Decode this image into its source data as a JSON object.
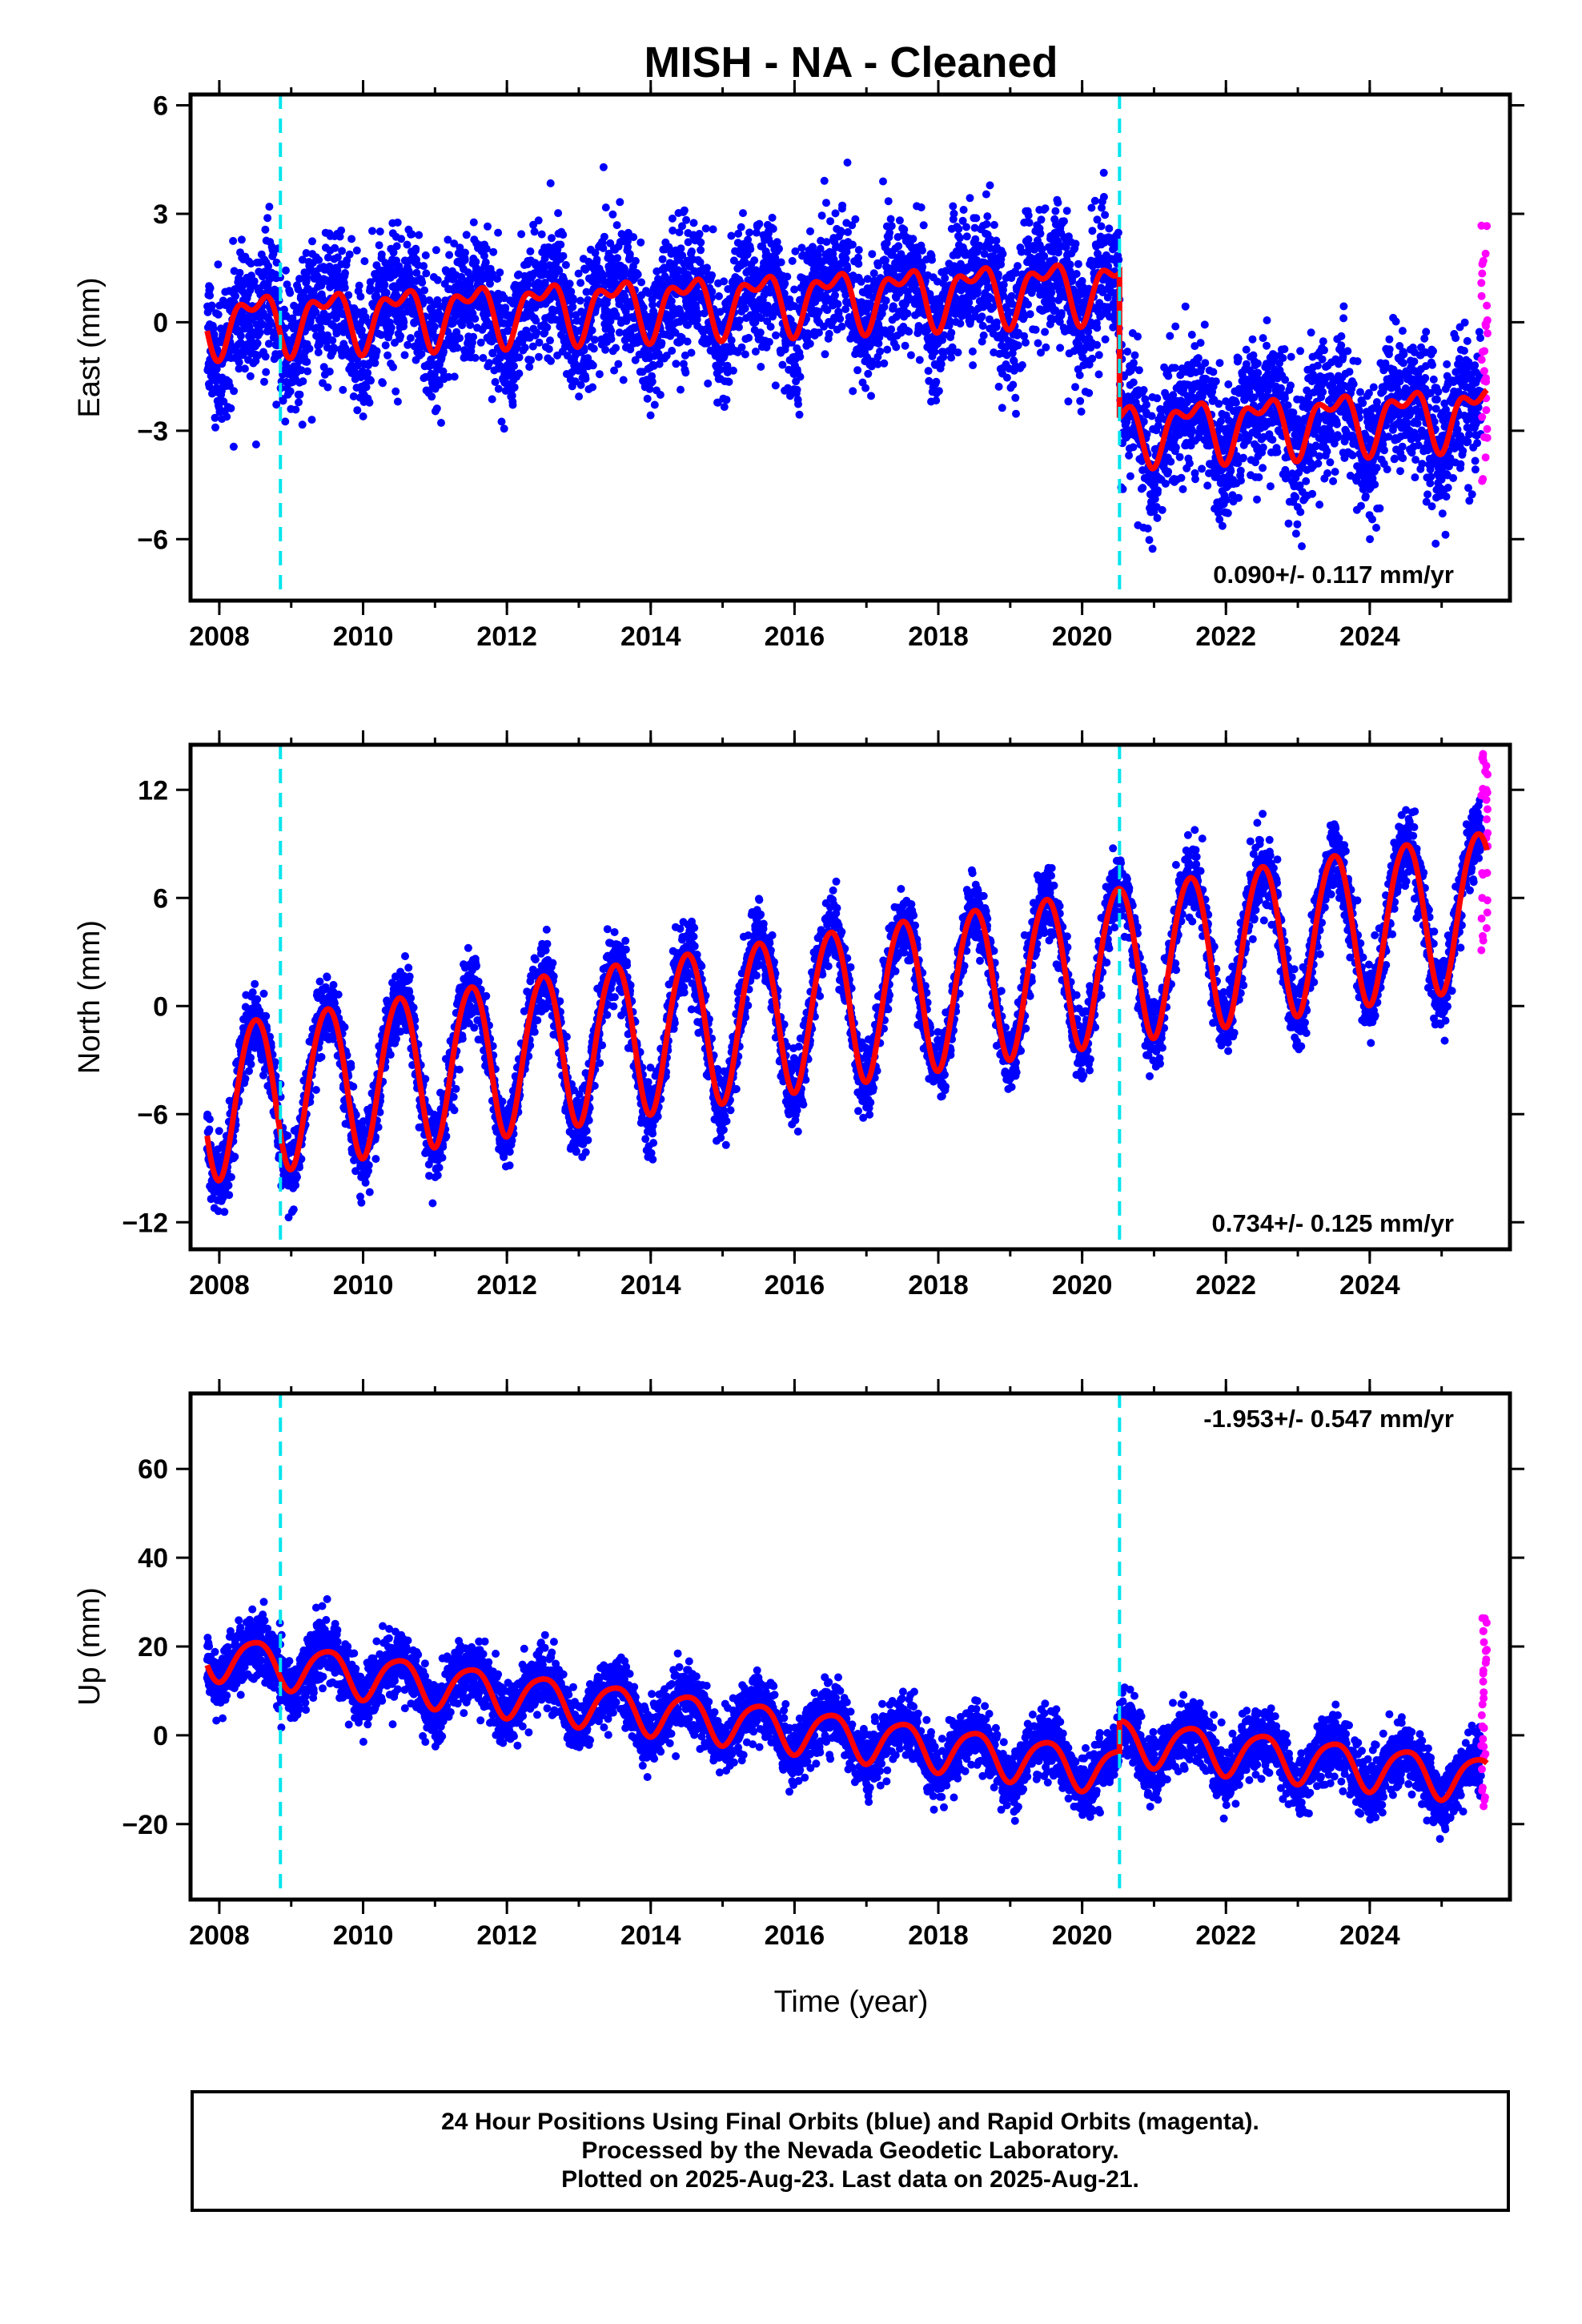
{
  "title": "MISH  - NA - Cleaned",
  "xlabel": "Time (year)",
  "colors": {
    "final_orbits": "#0000ff",
    "rapid_orbits": "#ff00ff",
    "model_fit": "#ff0000",
    "offsets": "#00e5ee",
    "axis": "#000000"
  },
  "footer": {
    "line1": "24 Hour Positions Using Final Orbits (blue) and Rapid Orbits (magenta).",
    "line2": "Processed by the Nevada Geodetic Laboratory.",
    "line3": "Plotted on 2025-Aug-23. Last data on 2025-Aug-21."
  },
  "chart_data": [
    {
      "type": "scatter",
      "ylabel": "East (mm)",
      "xlim": [
        2007.6,
        2025.95
      ],
      "ylim": [
        -7.7,
        6.3
      ],
      "xticks": [
        2008,
        2010,
        2012,
        2014,
        2016,
        2018,
        2020,
        2022,
        2024
      ],
      "yticks": [
        -6,
        -3,
        0,
        3,
        6
      ],
      "offset_lines": [
        2008.85,
        2020.52
      ],
      "rate": "0.090+/- 0.117 mm/yr",
      "rate_position": "bottom-right",
      "model": {
        "segments": [
          {
            "x_start": 2007.83,
            "x_end": 2020.52,
            "trend_start": 0.0,
            "trend_end": 1.0
          },
          {
            "x_start": 2020.52,
            "x_end": 2025.63,
            "trend_start": -3.0,
            "trend_end": -2.5
          }
        ],
        "annual_amplitude": 0.7,
        "semiannual_amplitude": 0.4
      },
      "scatter_sigma": 0.9,
      "series": [
        {
          "name": "Final Orbits",
          "x_range": [
            2007.83,
            2025.55
          ]
        },
        {
          "name": "Rapid Orbits",
          "x_range": [
            2025.55,
            2025.64
          ],
          "y_range": [
            -5.4,
            2.7
          ]
        }
      ]
    },
    {
      "type": "scatter",
      "ylabel": "North (mm)",
      "xlim": [
        2007.6,
        2025.95
      ],
      "ylim": [
        -13.5,
        14.5
      ],
      "xticks": [
        2008,
        2010,
        2012,
        2014,
        2016,
        2018,
        2020,
        2022,
        2024
      ],
      "yticks": [
        -12,
        -6,
        0,
        6,
        12
      ],
      "offset_lines": [
        2008.85,
        2020.52
      ],
      "rate": "0.734+/- 0.125 mm/yr",
      "rate_position": "bottom-right",
      "model": {
        "segments": [
          {
            "x_start": 2007.83,
            "x_end": 2025.63,
            "trend_start": -5.2,
            "trend_end": 5.6
          }
        ],
        "annual_amplitude": 4.3,
        "semiannual_amplitude": 0.3
      },
      "scatter_sigma": 1.0,
      "series": [
        {
          "name": "Final Orbits",
          "x_range": [
            2007.83,
            2025.55
          ]
        },
        {
          "name": "Rapid Orbits",
          "x_range": [
            2025.55,
            2025.64
          ],
          "y_range": [
            3.0,
            14.0
          ]
        }
      ]
    },
    {
      "type": "scatter",
      "ylabel": "Up (mm)",
      "xlim": [
        2007.6,
        2025.95
      ],
      "ylim": [
        -37,
        77
      ],
      "xticks": [
        2008,
        2010,
        2012,
        2014,
        2016,
        2018,
        2020,
        2022,
        2024
      ],
      "yticks": [
        -20,
        0,
        20,
        40,
        60
      ],
      "offset_lines": [
        2008.85,
        2020.52
      ],
      "rate": "-1.953+/- 0.547 mm/yr",
      "rate_position": "top-right",
      "model": {
        "segments": [
          {
            "x_start": 2007.83,
            "x_end": 2020.52,
            "trend_start": 18.0,
            "trend_end": -8.0
          },
          {
            "x_start": 2020.52,
            "x_end": 2025.63,
            "trend_start": -1.0,
            "trend_end": -10.0
          }
        ],
        "annual_amplitude": 5.0,
        "semiannual_amplitude": 0.8
      },
      "scatter_sigma": 3.5,
      "series": [
        {
          "name": "Final Orbits",
          "x_range": [
            2007.83,
            2025.55
          ]
        },
        {
          "name": "Rapid Orbits",
          "x_range": [
            2025.55,
            2025.64
          ],
          "y_range": [
            -21,
            28
          ]
        }
      ]
    }
  ]
}
